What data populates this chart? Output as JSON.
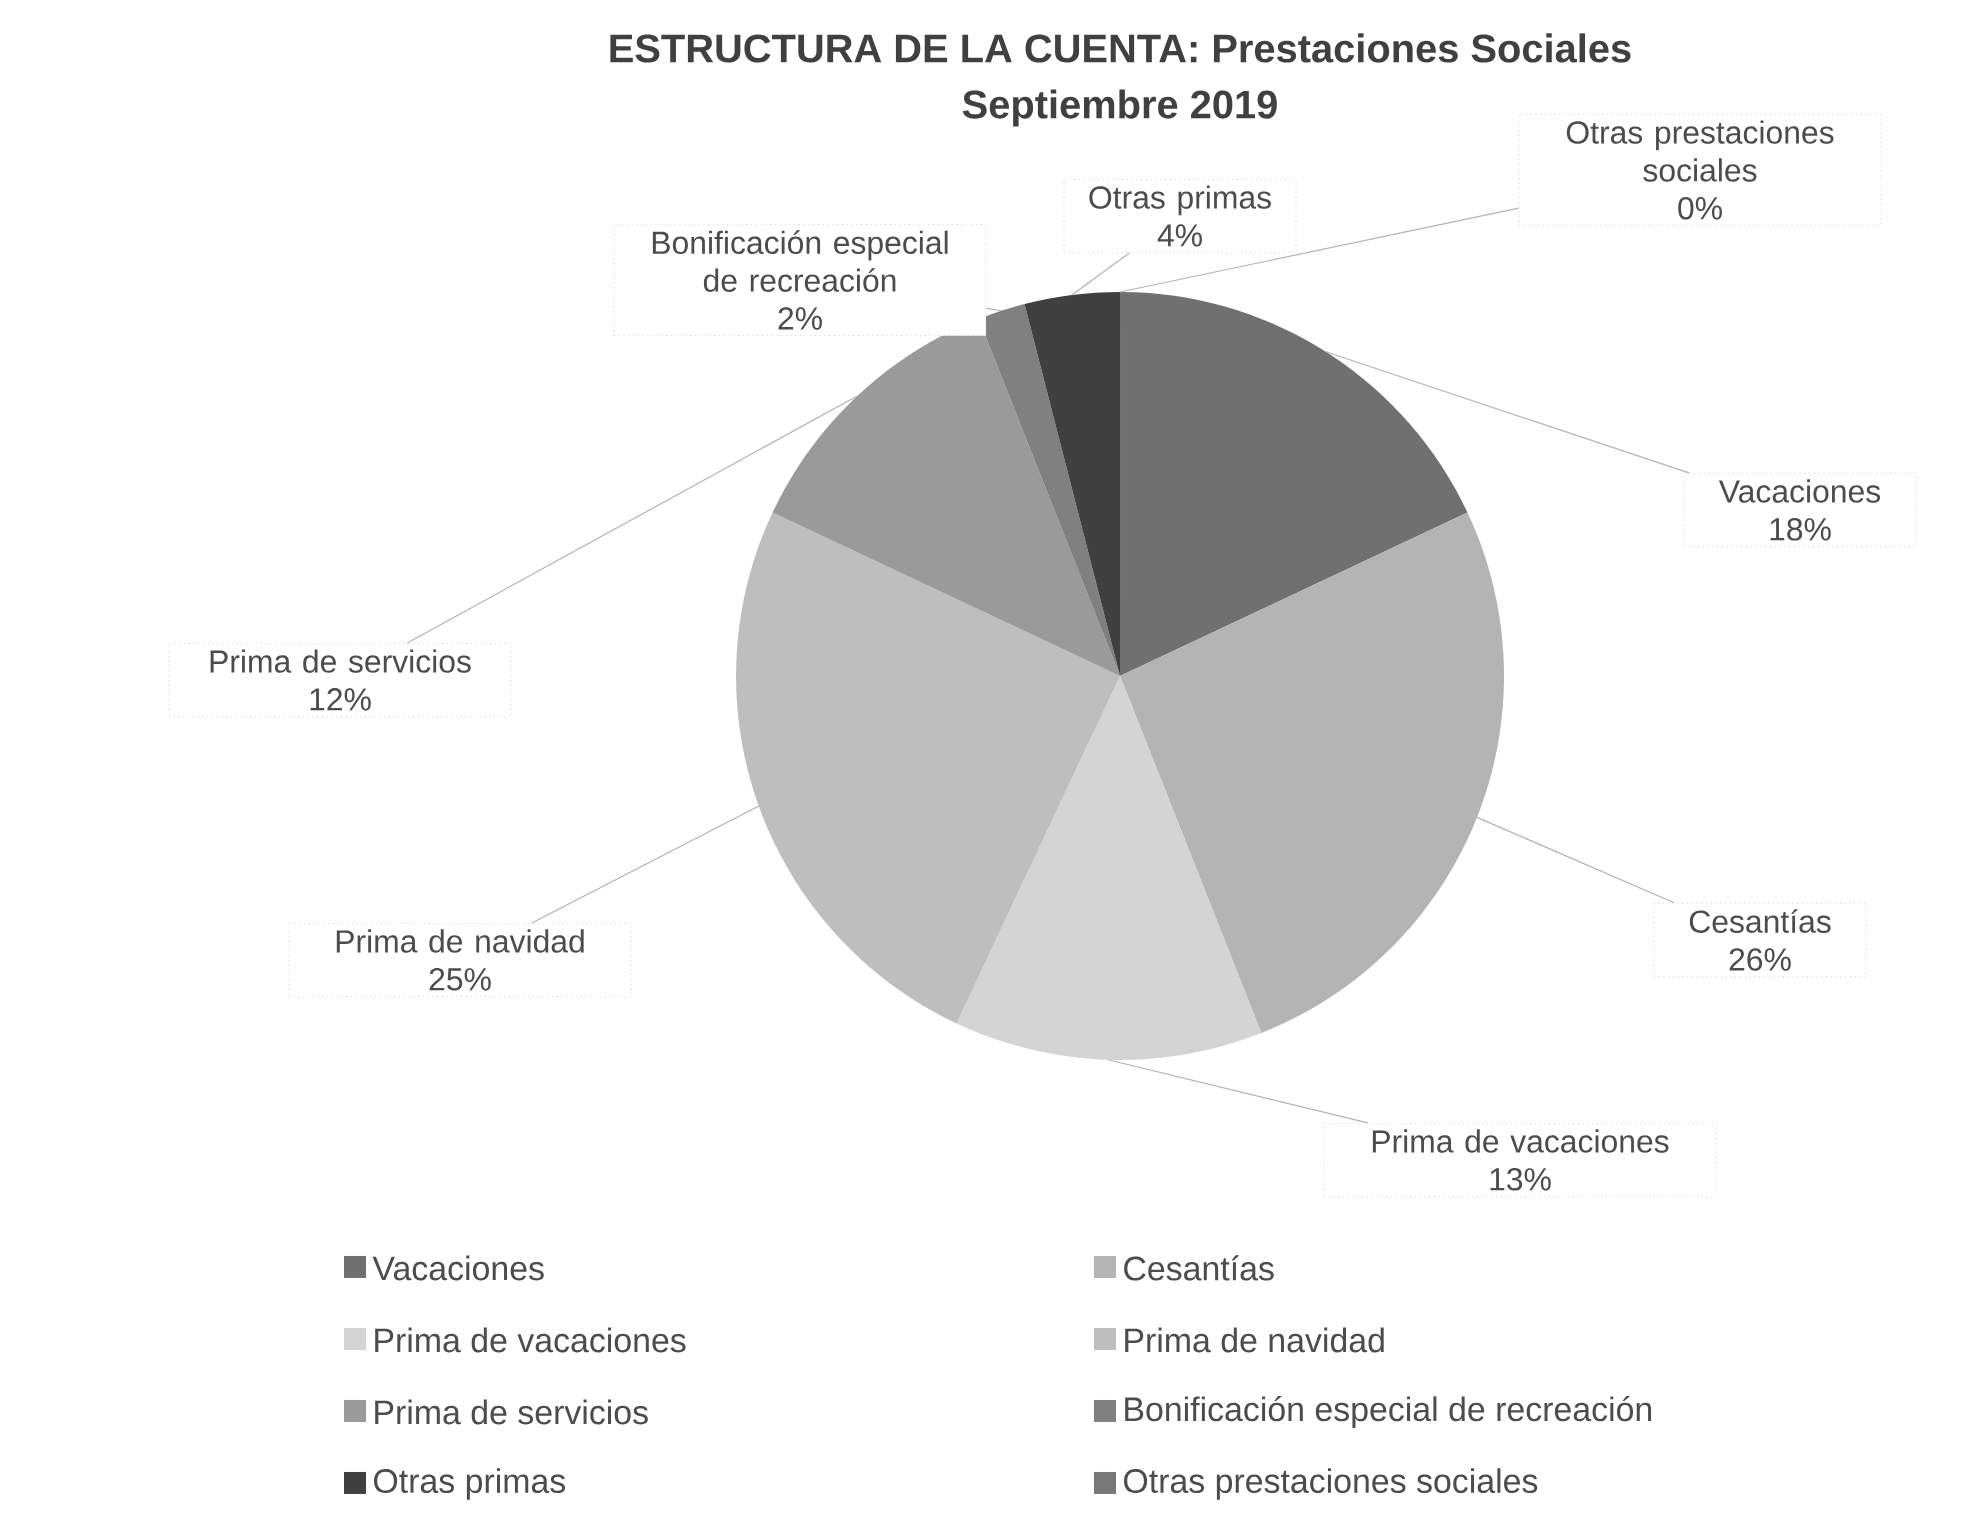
{
  "chart_data": {
    "type": "pie",
    "title": "ESTRUCTURA DE LA CUENTA: Prestaciones Sociales",
    "subtitle": "Septiembre 2019",
    "categories": [
      "Vacaciones",
      "Cesantías",
      "Prima de vacaciones",
      "Prima de navidad",
      "Prima de servicios",
      "Bonificación especial de recreación",
      "Otras primas",
      "Otras prestaciones sociales"
    ],
    "values": [
      18,
      26,
      13,
      25,
      12,
      2,
      4,
      0
    ],
    "value_labels": [
      "18%",
      "26%",
      "13%",
      "25%",
      "12%",
      "2%",
      "4%",
      "0%"
    ],
    "colors": [
      "#707070",
      "#b4b4b4",
      "#d4d4d4",
      "#bebebe",
      "#9a9a9a",
      "#808080",
      "#404040",
      "#787878"
    ],
    "legend": "bottom"
  }
}
